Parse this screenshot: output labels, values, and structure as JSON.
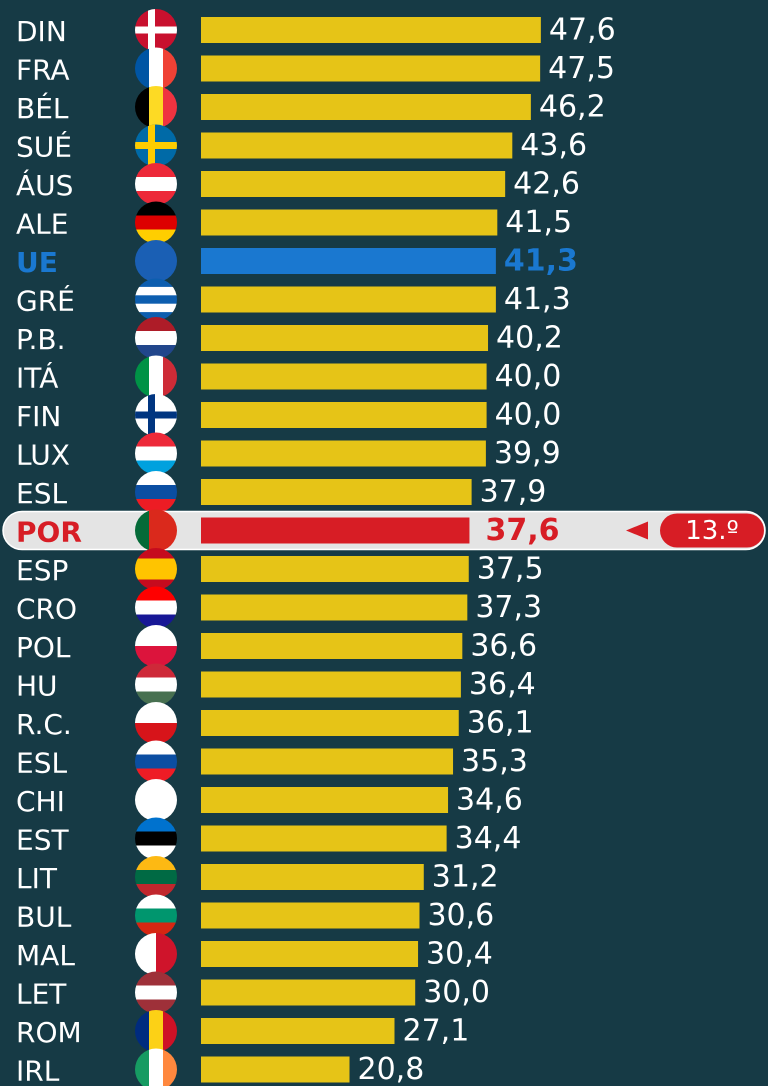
{
  "chart_data": {
    "type": "bar",
    "orientation": "horizontal",
    "categories": [
      "DIN",
      "FRA",
      "BÉL",
      "SUÉ",
      "ÁUS",
      "ALE",
      "UE",
      "GRÉ",
      "P.B.",
      "ITÁ",
      "FIN",
      "LUX",
      "ESL",
      "POR",
      "ESP",
      "CRO",
      "POL",
      "HU",
      "R.C.",
      "ESL",
      "CHI",
      "EST",
      "LIT",
      "BUL",
      "MAL",
      "LET",
      "ROM",
      "IRL"
    ],
    "values": [
      47.6,
      47.5,
      46.2,
      43.6,
      42.6,
      41.5,
      41.3,
      41.3,
      40.2,
      40.0,
      40.0,
      39.9,
      37.9,
      37.6,
      37.5,
      37.3,
      36.6,
      36.4,
      36.1,
      35.3,
      34.6,
      34.4,
      31.2,
      30.6,
      30.4,
      30.0,
      27.1,
      20.8
    ],
    "value_labels": [
      "47,6",
      "47,5",
      "46,2",
      "43,6",
      "42,6",
      "41,5",
      "41,3",
      "41,3",
      "40,2",
      "40,0",
      "40,0",
      "39,9",
      "37,9",
      "37,6",
      "37,5",
      "37,3",
      "36,6",
      "36,4",
      "36,1",
      "35,3",
      "34,6",
      "34,4",
      "31,2",
      "30,6",
      "30,4",
      "30,0",
      "27,1",
      "20,8"
    ],
    "color": "#e6c417",
    "colors": [
      "#e6c417",
      "#e6c417",
      "#e6c417",
      "#e6c417",
      "#e6c417",
      "#e6c417",
      "#1a78d0",
      "#e6c417",
      "#e6c417",
      "#e6c417",
      "#e6c417",
      "#e6c417",
      "#e6c417",
      "#d71d25",
      "#e6c417",
      "#e6c417",
      "#e6c417",
      "#e6c417",
      "#e6c417",
      "#e6c417",
      "#e6c417",
      "#e6c417",
      "#e6c417",
      "#e6c417",
      "#e6c417",
      "#e6c417",
      "#e6c417",
      "#e6c417"
    ],
    "xlim": [
      0,
      50
    ],
    "highlight": "POR",
    "annotation": "13.º"
  }
}
